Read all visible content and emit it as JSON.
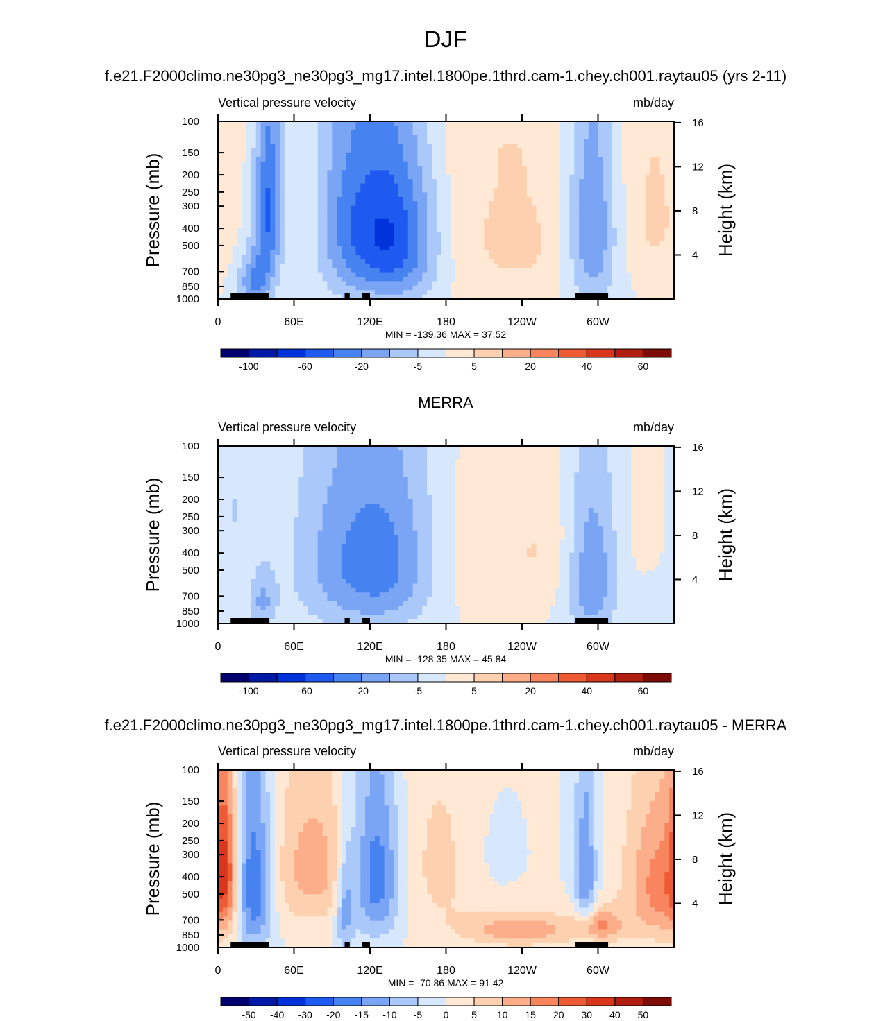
{
  "main_title": "DJF",
  "chart_data": [
    {
      "type": "heatmap",
      "title": "f.e21.F2000climo.ne30pg3_ne30pg3_mg17.intel.1800pe.1thrd.cam-1.chey.ch001.raytau05 (yrs 2-11)",
      "left_label": "Vertical pressure velocity",
      "right_label": "mb/day",
      "ylabel": "Pressure (mb)",
      "y2label": "Height (km)",
      "x_ticks": [
        "0",
        "60E",
        "120E",
        "180",
        "120W",
        "60W"
      ],
      "y_ticks": [
        "100",
        "150",
        "200",
        "250",
        "300",
        "400",
        "500",
        "700",
        "850",
        "1000"
      ],
      "y2_ticks": [
        "16",
        "12",
        "8",
        "4"
      ],
      "min_max": "MIN = -139.36  MAX =  37.52",
      "colorbar_labels": [
        "-100",
        "-60",
        "-20",
        "-5",
        "5",
        "20",
        "40",
        "60"
      ],
      "colorbar_levels": 16,
      "scale": 2.2,
      "blobs": [
        {
          "lon": 40,
          "p": 300,
          "rl": 8,
          "rp": 250,
          "v": -90
        },
        {
          "lon": 30,
          "p": 800,
          "rl": 10,
          "rp": 200,
          "v": -70
        },
        {
          "lon": 70,
          "p": 420,
          "rl": 14,
          "rp": 320,
          "v": 20
        },
        {
          "lon": 110,
          "p": 380,
          "rl": 28,
          "rp": 380,
          "v": -80
        },
        {
          "lon": 145,
          "p": 480,
          "rl": 22,
          "rp": 350,
          "v": -75
        },
        {
          "lon": 200,
          "p": 350,
          "rl": 60,
          "rp": 450,
          "v": 14
        },
        {
          "lon": 240,
          "p": 500,
          "rl": 30,
          "rp": 300,
          "v": 16
        },
        {
          "lon": 295,
          "p": 400,
          "rl": 14,
          "rp": 420,
          "v": -70
        },
        {
          "lon": 345,
          "p": 350,
          "rl": 18,
          "rp": 250,
          "v": 25
        },
        {
          "lon": 260,
          "p": 130,
          "rl": 120,
          "rp": 60,
          "v": 4
        }
      ]
    },
    {
      "type": "heatmap",
      "title": "MERRA",
      "left_label": "Vertical pressure velocity",
      "right_label": "mb/day",
      "ylabel": "Pressure (mb)",
      "y2label": "Height (km)",
      "x_ticks": [
        "0",
        "60E",
        "120E",
        "180",
        "120W",
        "60W"
      ],
      "y_ticks": [
        "100",
        "150",
        "200",
        "250",
        "300",
        "400",
        "500",
        "700",
        "850",
        "1000"
      ],
      "y2_ticks": [
        "16",
        "12",
        "8",
        "4"
      ],
      "min_max": "MIN = -128.35  MAX =  45.84",
      "colorbar_labels": [
        "-100",
        "-60",
        "-20",
        "-5",
        "5",
        "20",
        "40",
        "60"
      ],
      "colorbar_levels": 16,
      "scale": 2.2,
      "blobs": [
        {
          "lon": 15,
          "p": 300,
          "rl": 12,
          "rp": 250,
          "v": -25
        },
        {
          "lon": 20,
          "p": 500,
          "rl": 8,
          "rp": 150,
          "v": 18
        },
        {
          "lon": 35,
          "p": 750,
          "rl": 8,
          "rp": 200,
          "v": -45
        },
        {
          "lon": 100,
          "p": 450,
          "rl": 30,
          "rp": 400,
          "v": -55
        },
        {
          "lon": 140,
          "p": 450,
          "rl": 25,
          "rp": 380,
          "v": -50
        },
        {
          "lon": 215,
          "p": 450,
          "rl": 40,
          "rp": 300,
          "v": 12
        },
        {
          "lon": 255,
          "p": 380,
          "rl": 20,
          "rp": 220,
          "v": 15
        },
        {
          "lon": 295,
          "p": 550,
          "rl": 14,
          "rp": 400,
          "v": -65
        },
        {
          "lon": 340,
          "p": 300,
          "rl": 10,
          "rp": 180,
          "v": 14
        },
        {
          "lon": 350,
          "p": 700,
          "rl": 16,
          "rp": 200,
          "v": -12
        }
      ]
    },
    {
      "type": "heatmap",
      "title": "f.e21.F2000climo.ne30pg3_ne30pg3_mg17.intel.1800pe.1thrd.cam-1.chey.ch001.raytau05 - MERRA",
      "left_label": "Vertical pressure velocity",
      "right_label": "mb/day",
      "ylabel": "Pressure (mb)",
      "y2label": "Height (km)",
      "x_ticks": [
        "0",
        "60E",
        "120E",
        "180",
        "120W",
        "60W"
      ],
      "y_ticks": [
        "100",
        "150",
        "200",
        "250",
        "300",
        "400",
        "500",
        "700",
        "850",
        "1000"
      ],
      "y2_ticks": [
        "16",
        "12",
        "8",
        "4"
      ],
      "min_max": "MIN = -70.86  MAX =  91.42",
      "colorbar_labels": [
        "-50",
        "-40",
        "-30",
        "-20",
        "-15",
        "-10",
        "-5",
        "0",
        "5",
        "10",
        "15",
        "20",
        "30",
        "40",
        "50"
      ],
      "colorbar_levels": 16,
      "scale": 1.0,
      "blobs": [
        {
          "lon": 5,
          "p": 350,
          "rl": 6,
          "rp": 250,
          "v": 35
        },
        {
          "lon": 28,
          "p": 450,
          "rl": 10,
          "rp": 350,
          "v": -45
        },
        {
          "lon": 75,
          "p": 350,
          "rl": 22,
          "rp": 250,
          "v": 25
        },
        {
          "lon": 100,
          "p": 600,
          "rl": 5,
          "rp": 300,
          "v": -25
        },
        {
          "lon": 125,
          "p": 400,
          "rl": 14,
          "rp": 300,
          "v": -40
        },
        {
          "lon": 175,
          "p": 350,
          "rl": 30,
          "rp": 350,
          "v": 12
        },
        {
          "lon": 240,
          "p": 800,
          "rl": 30,
          "rp": 120,
          "v": 28
        },
        {
          "lon": 290,
          "p": 400,
          "rl": 6,
          "rp": 300,
          "v": -30
        },
        {
          "lon": 300,
          "p": 750,
          "rl": 14,
          "rp": 120,
          "v": 30
        },
        {
          "lon": 350,
          "p": 450,
          "rl": 20,
          "rp": 300,
          "v": 35
        },
        {
          "lon": 215,
          "p": 300,
          "rl": 15,
          "rp": 150,
          "v": -6
        }
      ]
    }
  ],
  "colors": {
    "palette": [
      "#00006e",
      "#0019a6",
      "#0032dc",
      "#1e5af0",
      "#4682f0",
      "#7aa5f5",
      "#aac8fa",
      "#d7e8fd",
      "#ffe8d4",
      "#fdd0b0",
      "#fcae8a",
      "#f8855e",
      "#ee5a34",
      "#d8371c",
      "#b01e12",
      "#7e0c06"
    ],
    "topography": "#000000"
  }
}
